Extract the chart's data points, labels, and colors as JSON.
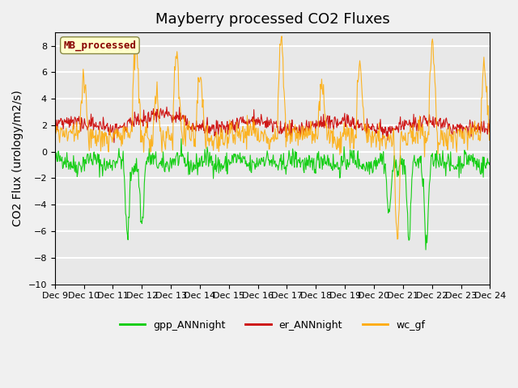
{
  "title": "Mayberry processed CO2 Fluxes",
  "ylabel": "CO2 Flux (urology/m2/s)",
  "ylim": [
    -10,
    9
  ],
  "yticks": [
    -10,
    -8,
    -6,
    -4,
    -2,
    0,
    2,
    4,
    6,
    8
  ],
  "xtick_labels": [
    "Dec 9",
    "Dec 10",
    "Dec 11",
    "Dec 12",
    "Dec 13",
    "Dec 14",
    "Dec 15",
    "Dec 16",
    "Dec 17",
    "Dec 18",
    "Dec 19",
    "Dec 20",
    "Dec 21",
    "Dec 22",
    "Dec 23",
    "Dec 24"
  ],
  "legend_labels": [
    "gpp_ANNnight",
    "er_ANNnight",
    "wc_gf"
  ],
  "legend_colors": [
    "#00cc00",
    "#cc0000",
    "#ffaa00"
  ],
  "line_colors": {
    "gpp": "#00cc00",
    "er": "#cc0000",
    "wc": "#ffaa00"
  },
  "inset_label": "MB_processed",
  "inset_bg": "#ffffcc",
  "inset_text_color": "#880000",
  "plot_bg_color": "#e8e8e8",
  "fig_bg_color": "#f0f0f0",
  "title_fontsize": 13,
  "axis_fontsize": 10,
  "tick_fontsize": 8
}
